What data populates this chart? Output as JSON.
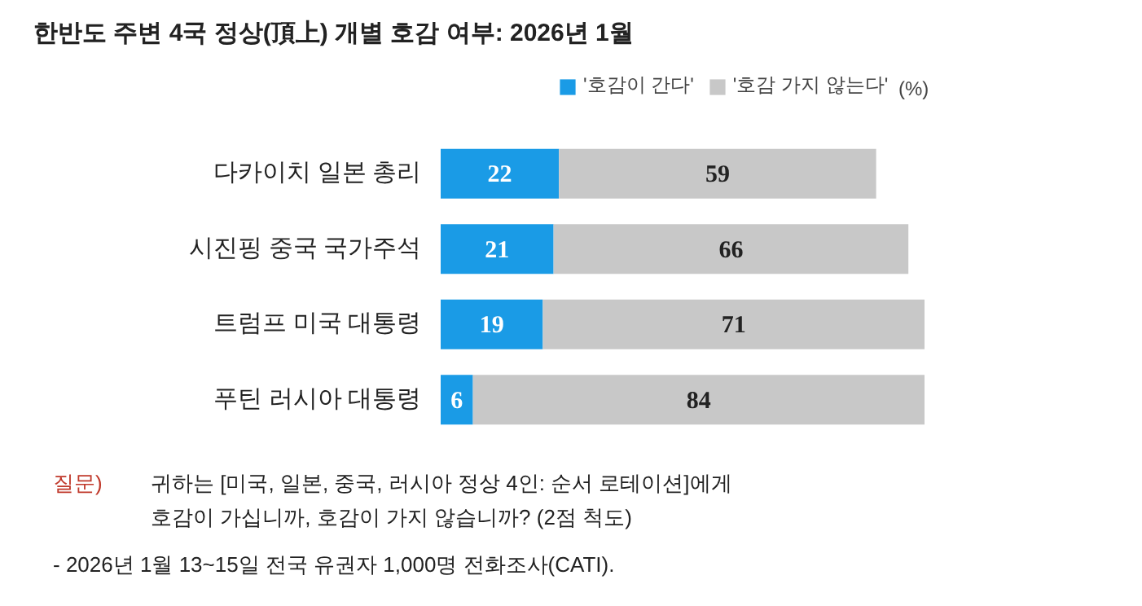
{
  "chart_data": {
    "type": "bar",
    "orientation": "horizontal",
    "stacked": true,
    "title": "한반도 주변 4국 정상(頂上) 개별 호감 여부: 2026년 1월",
    "categories": [
      "다카이치 일본 총리",
      "시진핑 중국 국가주석",
      "트럼프 미국 대통령",
      "푸틴 러시아 대통령"
    ],
    "series": [
      {
        "name": "'호감이 간다'",
        "color": "#1a9be6",
        "values": [
          22,
          21,
          19,
          6
        ]
      },
      {
        "name": "'호감 가지 않는다'",
        "color": "#c8c8c8",
        "values": [
          59,
          66,
          71,
          84
        ]
      }
    ],
    "data_labels": true,
    "legend": "top right",
    "grid": false,
    "annotations": [
      "(%)",
      "질문)",
      "귀하는 [미국, 일본, 중국, 러시아 정상 4인: 순서 로테이션]에게",
      "호감이 가십니까, 호감이 가지 않습니까? (2점 척도)",
      "- 2026년 1월 13~15일 전국 유권자 1,000명 전화조사(CATI)."
    ]
  }
}
